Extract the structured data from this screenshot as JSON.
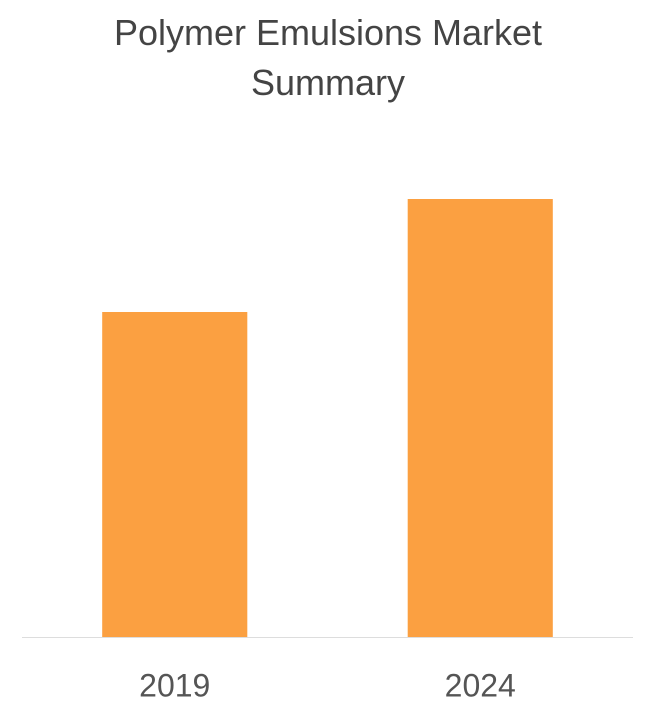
{
  "chart_data": {
    "type": "bar",
    "title": "Polymer Emulsions Market Summary",
    "categories": [
      "2019",
      "2024"
    ],
    "values": [
      325,
      438
    ],
    "color": "#fba041",
    "ylim": [
      0,
      500
    ],
    "grid": false
  }
}
